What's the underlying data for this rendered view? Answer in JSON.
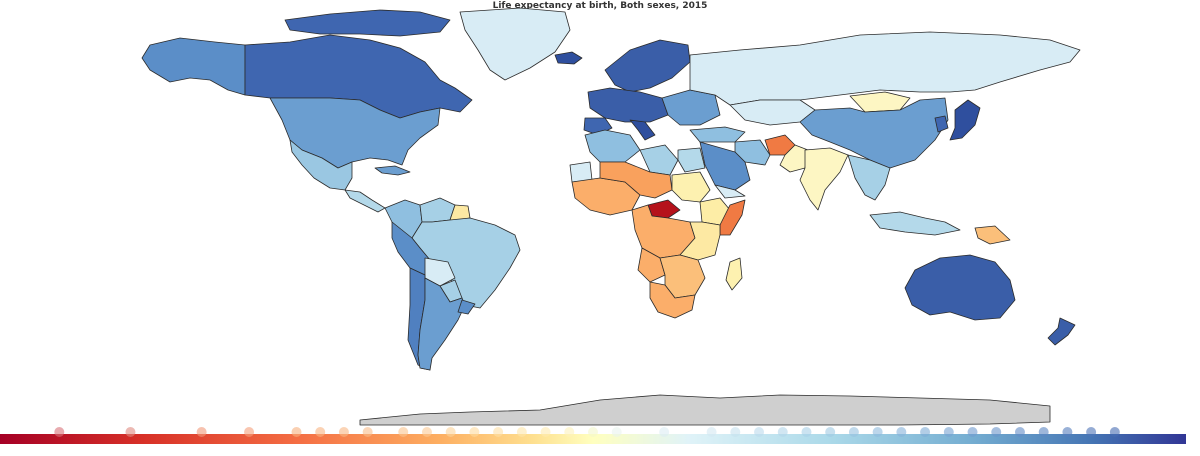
{
  "title": "Life expectancy at birth, Both sexes, 2015",
  "colors": {
    "ocean": "#ffffff",
    "border": "#2b2b2b",
    "nodata": "#cfcfcf",
    "scale": [
      "#a50026",
      "#d73027",
      "#f46d43",
      "#fdae61",
      "#fee090",
      "#ffffbf",
      "#e0f3f8",
      "#abd9e9",
      "#74add1",
      "#4575b4",
      "#313695"
    ]
  },
  "regions": [
    {
      "name": "Canada",
      "color": "#3f66b0"
    },
    {
      "name": "Alaska",
      "color": "#5b8ec8"
    },
    {
      "name": "Arctic islands",
      "color": "#3f66b0"
    },
    {
      "name": "Greenland",
      "color": "#d8ecf5"
    },
    {
      "name": "Iceland",
      "color": "#2f4f9e"
    },
    {
      "name": "United States",
      "color": "#6b9ed0"
    },
    {
      "name": "Mexico",
      "color": "#9ac7e2"
    },
    {
      "name": "Central America",
      "color": "#b4d9ea"
    },
    {
      "name": "Cuba",
      "color": "#6b9ed0"
    },
    {
      "name": "Colombia",
      "color": "#8fbfe0"
    },
    {
      "name": "Venezuela",
      "color": "#a6d0e6"
    },
    {
      "name": "Guyana",
      "color": "#fde9a3"
    },
    {
      "name": "Brazil",
      "color": "#a6d0e6"
    },
    {
      "name": "Peru",
      "color": "#5b8ec8"
    },
    {
      "name": "Bolivia",
      "color": "#d8ecf5"
    },
    {
      "name": "Paraguay",
      "color": "#a6d0e6"
    },
    {
      "name": "Chile",
      "color": "#5080c0"
    },
    {
      "name": "Argentina",
      "color": "#6b9ed0"
    },
    {
      "name": "Uruguay",
      "color": "#5b8ec8"
    },
    {
      "name": "Scandinavia",
      "color": "#3a5ea8"
    },
    {
      "name": "Western Europe",
      "color": "#3a5ea8"
    },
    {
      "name": "Iberia",
      "color": "#3f66b0"
    },
    {
      "name": "Italy",
      "color": "#2f4f9e"
    },
    {
      "name": "Eastern Europe",
      "color": "#6b9ed0"
    },
    {
      "name": "Russia",
      "color": "#d8ecf5"
    },
    {
      "name": "Turkey",
      "color": "#8fbfe0"
    },
    {
      "name": "Kazakhstan",
      "color": "#d8ecf5"
    },
    {
      "name": "Mongolia",
      "color": "#fdf6c3"
    },
    {
      "name": "China",
      "color": "#6b9ed0"
    },
    {
      "name": "Japan",
      "color": "#2f4f9e"
    },
    {
      "name": "Korea",
      "color": "#3f66b0"
    },
    {
      "name": "Iran",
      "color": "#8fbfe0"
    },
    {
      "name": "Afghanistan",
      "color": "#f07a43"
    },
    {
      "name": "Pakistan",
      "color": "#fdf6c3"
    },
    {
      "name": "India",
      "color": "#fdf6c3"
    },
    {
      "name": "Arabian Peninsula",
      "color": "#5b8ec8"
    },
    {
      "name": "Yemen",
      "color": "#d8ecf5"
    },
    {
      "name": "Southeast Asia",
      "color": "#a6d0e6"
    },
    {
      "name": "Indonesia",
      "color": "#b4d9ea"
    },
    {
      "name": "Papua New Guinea",
      "color": "#fbbf7a"
    },
    {
      "name": "Australia",
      "color": "#3a5ea8"
    },
    {
      "name": "New Zealand",
      "color": "#3a5ea8"
    },
    {
      "name": "Maghreb",
      "color": "#8fbfe0"
    },
    {
      "name": "Libya",
      "color": "#a6d0e6"
    },
    {
      "name": "Egypt",
      "color": "#b4d9ea"
    },
    {
      "name": "Western Sahara",
      "color": "#d8ecf5"
    },
    {
      "name": "West Africa",
      "color": "#fbae6a"
    },
    {
      "name": "Sahel",
      "color": "#f9a15d"
    },
    {
      "name": "Sudan",
      "color": "#fdf1b0"
    },
    {
      "name": "Central African Republic",
      "color": "#b5121b"
    },
    {
      "name": "Somalia",
      "color": "#f07a43"
    },
    {
      "name": "Ethiopia",
      "color": "#fdeda6"
    },
    {
      "name": "Central Africa",
      "color": "#fbae6a"
    },
    {
      "name": "East Africa",
      "color": "#fde9a3"
    },
    {
      "name": "Angola",
      "color": "#fbae6a"
    },
    {
      "name": "Southern Africa",
      "color": "#fbbf7a"
    },
    {
      "name": "South Africa",
      "color": "#fbae6a"
    },
    {
      "name": "Madagascar",
      "color": "#fdf1b0"
    },
    {
      "name": "Antarctica",
      "color": "#cfcfcf"
    }
  ],
  "colorbar": {
    "markers": [
      {
        "value": 0.05,
        "color": "#d8737a"
      },
      {
        "value": 0.11,
        "color": "#e08a80"
      },
      {
        "value": 0.17,
        "color": "#f19a7a"
      },
      {
        "value": 0.21,
        "color": "#f5a07b"
      },
      {
        "value": 0.25,
        "color": "#f7b07e"
      },
      {
        "value": 0.27,
        "color": "#f8b482"
      },
      {
        "value": 0.29,
        "color": "#f8b886"
      },
      {
        "value": 0.31,
        "color": "#f9bd8a"
      },
      {
        "value": 0.34,
        "color": "#fac48f"
      },
      {
        "value": 0.36,
        "color": "#fbca95"
      },
      {
        "value": 0.38,
        "color": "#fcd49b"
      },
      {
        "value": 0.4,
        "color": "#fdda9f"
      },
      {
        "value": 0.42,
        "color": "#fde0a5"
      },
      {
        "value": 0.44,
        "color": "#fde6aa"
      },
      {
        "value": 0.46,
        "color": "#fdebb0"
      },
      {
        "value": 0.48,
        "color": "#fef2ba"
      },
      {
        "value": 0.5,
        "color": "#f4f6cc"
      },
      {
        "value": 0.52,
        "color": "#e9f4ee"
      },
      {
        "value": 0.56,
        "color": "#dcecf4"
      },
      {
        "value": 0.6,
        "color": "#d3e8f2"
      },
      {
        "value": 0.62,
        "color": "#c6e1ef"
      },
      {
        "value": 0.64,
        "color": "#bcdbec"
      },
      {
        "value": 0.66,
        "color": "#b2d6ea"
      },
      {
        "value": 0.68,
        "color": "#a9d0e7"
      },
      {
        "value": 0.7,
        "color": "#a0c9e3"
      },
      {
        "value": 0.72,
        "color": "#97c2e0"
      },
      {
        "value": 0.74,
        "color": "#8fbade"
      },
      {
        "value": 0.76,
        "color": "#87b2da"
      },
      {
        "value": 0.78,
        "color": "#7fabd6"
      },
      {
        "value": 0.8,
        "color": "#78a3d2"
      },
      {
        "value": 0.82,
        "color": "#719bce"
      },
      {
        "value": 0.84,
        "color": "#6a94ca"
      },
      {
        "value": 0.86,
        "color": "#638cc6"
      },
      {
        "value": 0.88,
        "color": "#5c85c2"
      },
      {
        "value": 0.9,
        "color": "#557dbd"
      },
      {
        "value": 0.92,
        "color": "#4e75b8"
      },
      {
        "value": 0.94,
        "color": "#476db2"
      }
    ]
  }
}
